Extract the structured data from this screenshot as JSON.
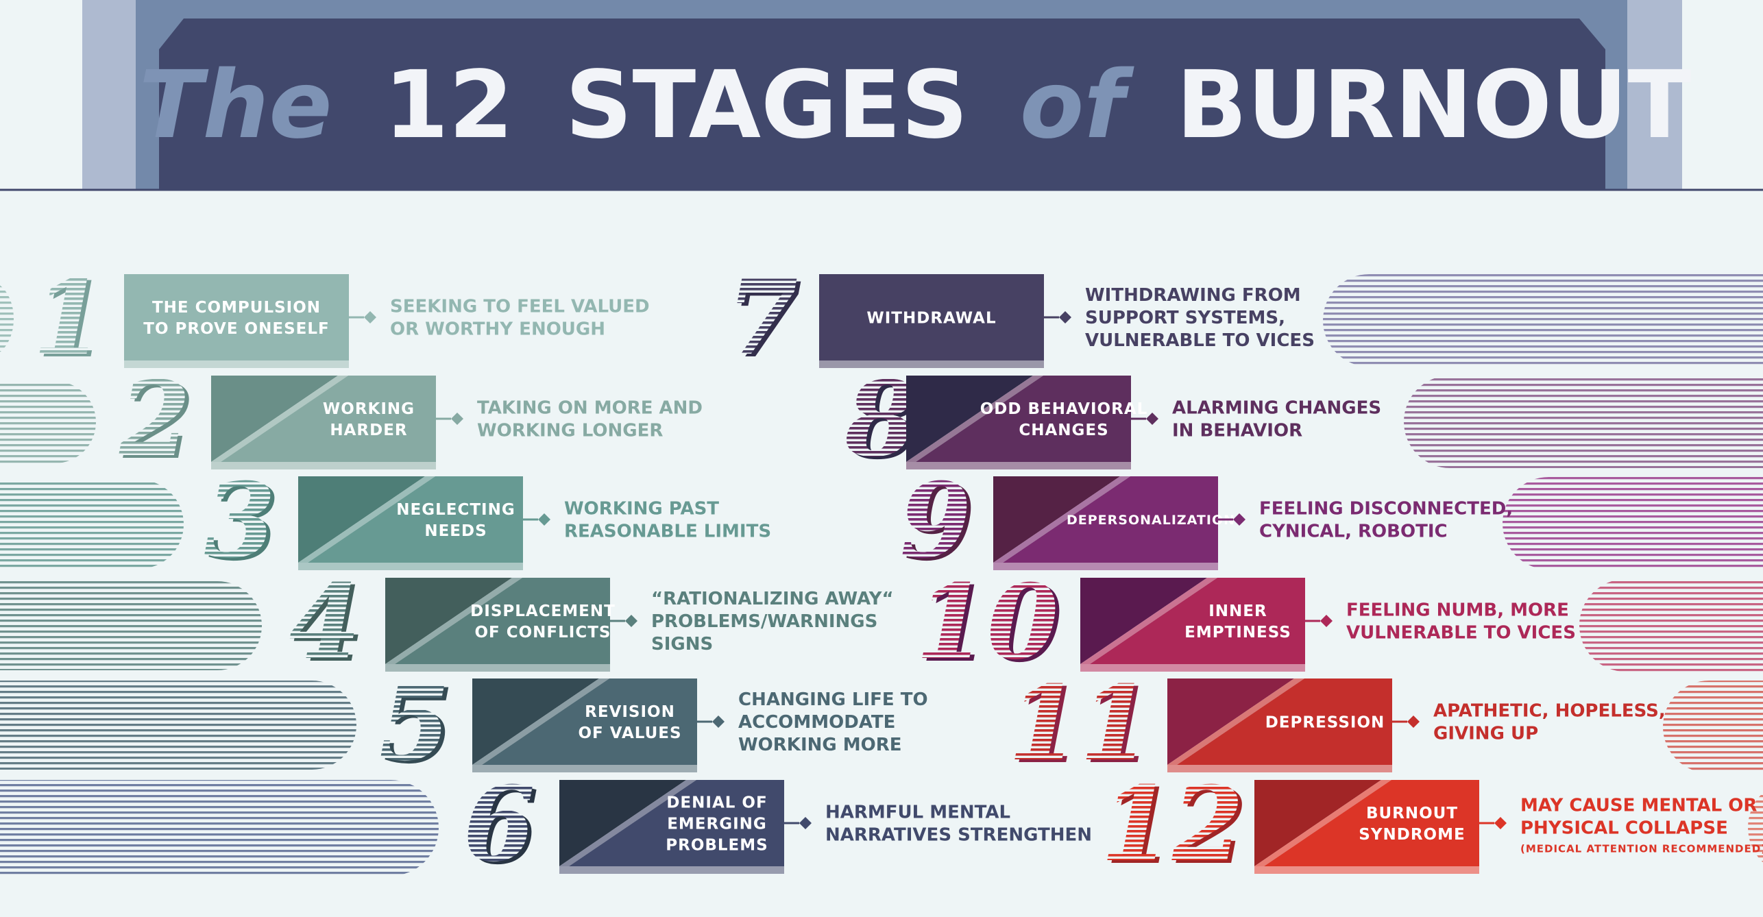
{
  "title": {
    "the": "The",
    "count": "12",
    "stages": "STAGES",
    "of": "of",
    "burnout": "BURNOUT"
  },
  "colors": {
    "background": "#eef5f6",
    "banner_outer": "#aebad0",
    "banner_mid": "#7389aa",
    "banner_inner": "#41486c",
    "title_light": "#f2f4f8",
    "title_accent": "#7e93b5"
  },
  "stages": [
    {
      "number": "1",
      "label": [
        "THE COMPULSION",
        "TO PROVE ONESELF"
      ],
      "description": [
        "SEEKING TO FEEL VALUED",
        "OR WORTHY ENOUGH"
      ],
      "note": "",
      "color": "#93b7b1",
      "dark": "#789f99"
    },
    {
      "number": "2",
      "label": [
        "WORKING",
        "HARDER"
      ],
      "description": [
        "TAKING ON MORE AND",
        "WORKING LONGER"
      ],
      "note": "",
      "color": "#87aaa3",
      "dark": "#6a8f88"
    },
    {
      "number": "3",
      "label": [
        "NEGLECTING",
        "NEEDS"
      ],
      "description": [
        "WORKING PAST",
        "REASONABLE LIMITS"
      ],
      "note": "",
      "color": "#679a93",
      "dark": "#4e7e77"
    },
    {
      "number": "4",
      "label": [
        "DISPLACEMENT",
        "OF CONFLICTS"
      ],
      "description": [
        "“RATIONALIZING AWAY“",
        "PROBLEMS/WARNINGS",
        "SIGNS"
      ],
      "note": "",
      "color": "#5a807d",
      "dark": "#435f5c"
    },
    {
      "number": "5",
      "label": [
        "REVISION",
        "OF VALUES"
      ],
      "description": [
        "CHANGING LIFE TO",
        "ACCOMMODATE",
        "WORKING MORE"
      ],
      "note": "",
      "color": "#4c6873",
      "dark": "#354b54"
    },
    {
      "number": "6",
      "label": [
        "DENIAL OF",
        "EMERGING",
        "PROBLEMS"
      ],
      "description": [
        "HARMFUL MENTAL",
        "NARRATIVES STRENGTHEN"
      ],
      "note": "",
      "color": "#414a6c",
      "dark": "#293544"
    },
    {
      "number": "7",
      "label": [
        "WITHDRAWAL"
      ],
      "description": [
        "WITHDRAWING FROM",
        "SUPPORT SYSTEMS,",
        "VULNERABLE TO VICES"
      ],
      "note": "",
      "color": "#474163",
      "dark": "#332f4c"
    },
    {
      "number": "8",
      "label": [
        "ODD BEHAVIORAL",
        "CHANGES"
      ],
      "description": [
        "ALARMING CHANGES",
        "IN BEHAVIOR"
      ],
      "note": "",
      "color": "#5e2f5e",
      "dark": "#2f2a48"
    },
    {
      "number": "9",
      "label": [
        "DEPERSONALIZATION"
      ],
      "description": [
        "FEELING DISCONNECTED,",
        "CYNICAL, ROBOTIC"
      ],
      "note": "",
      "color": "#7b2b71",
      "dark": "#552245"
    },
    {
      "number": "10",
      "label": [
        "INNER",
        "EMPTINESS"
      ],
      "description": [
        "FEELING NUMB, MORE",
        "VULNERABLE TO VICES"
      ],
      "note": "",
      "color": "#ad2858",
      "dark": "#5a1a4f"
    },
    {
      "number": "11",
      "label": [
        "DEPRESSION"
      ],
      "description": [
        "APATHETIC, HOPELESS,",
        "GIVING UP"
      ],
      "note": "",
      "color": "#c42f2c",
      "dark": "#8c2245"
    },
    {
      "number": "12",
      "label": [
        "BURNOUT",
        "SYNDROME"
      ],
      "description": [
        "MAY CAUSE MENTAL OR",
        "PHYSICAL COLLAPSE"
      ],
      "note": "(MEDICAL ATTENTION RECOMMENDED)",
      "color": "#dc3527",
      "dark": "#a12526"
    }
  ]
}
